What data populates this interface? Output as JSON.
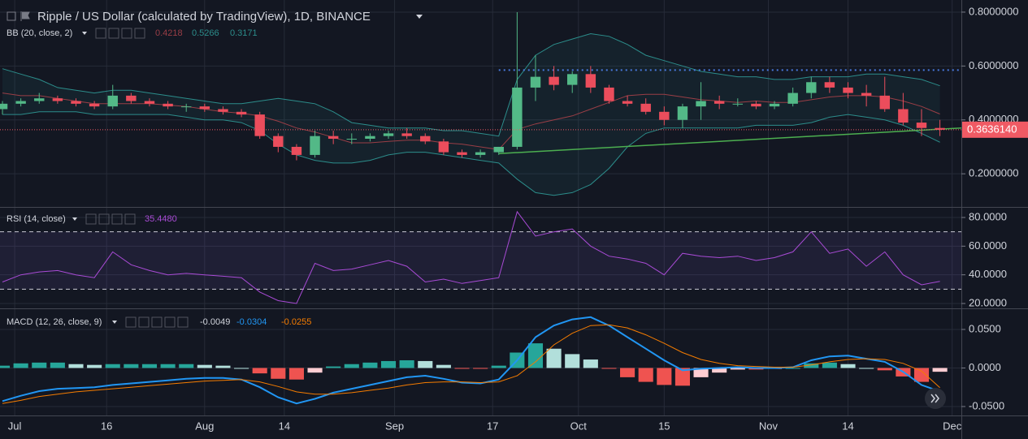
{
  "chart_data": {
    "type": "candlestick",
    "title": "Ripple / US Dollar (calculated by TradingView), 1D, BINANCE",
    "x": [
      -2,
      1,
      4,
      7,
      10,
      13,
      16,
      19,
      22,
      25,
      28,
      31,
      34,
      37,
      40,
      43,
      46,
      49,
      52,
      55,
      58,
      61,
      64,
      67,
      70,
      73,
      76,
      79,
      82,
      85,
      88,
      91,
      94,
      97,
      100,
      103,
      106,
      109,
      112,
      115,
      118,
      121,
      124,
      127,
      130,
      133,
      136,
      139,
      142,
      145,
      148,
      151
    ],
    "xlim": [
      -2.4,
      154.5
    ],
    "xticks": [
      {
        "value": 0,
        "label": "Jul"
      },
      {
        "value": 15,
        "label": "16"
      },
      {
        "value": 31,
        "label": "Aug"
      },
      {
        "value": 44,
        "label": "14"
      },
      {
        "value": 62,
        "label": "Sep"
      },
      {
        "value": 78,
        "label": "17"
      },
      {
        "value": 92,
        "label": "Oct"
      },
      {
        "value": 106,
        "label": "15"
      },
      {
        "value": 123,
        "label": "Nov"
      },
      {
        "value": 136,
        "label": "14"
      },
      {
        "value": 153,
        "label": "Dec"
      }
    ],
    "grid": true,
    "panes": [
      {
        "type": "candlestick",
        "ylim": [
          0.077,
          0.845
        ],
        "yticks": [
          {
            "value": 0.2,
            "label": "0.2000000"
          },
          {
            "value": 0.4,
            "label": "0.4000000"
          },
          {
            "value": 0.6,
            "label": "0.6000000"
          },
          {
            "value": 0.8,
            "label": "0.8000000"
          }
        ],
        "up_color": "#53b987",
        "down_color": "#eb4d5c",
        "open": [
          0.44,
          0.46,
          0.47,
          0.48,
          0.47,
          0.46,
          0.45,
          0.49,
          0.47,
          0.46,
          0.45,
          0.45,
          0.44,
          0.43,
          0.42,
          0.34,
          0.3,
          0.27,
          0.34,
          0.33,
          0.33,
          0.34,
          0.35,
          0.34,
          0.32,
          0.28,
          0.27,
          0.28,
          0.3,
          0.52,
          0.56,
          0.53,
          0.57,
          0.52,
          0.47,
          0.46,
          0.43,
          0.4,
          0.45,
          0.47,
          0.46,
          0.46,
          0.45,
          0.46,
          0.5,
          0.54,
          0.52,
          0.5,
          0.49,
          0.44,
          0.39,
          0.37
        ],
        "high": [
          0.47,
          0.48,
          0.5,
          0.49,
          0.48,
          0.47,
          0.53,
          0.5,
          0.48,
          0.47,
          0.46,
          0.46,
          0.45,
          0.44,
          0.43,
          0.35,
          0.31,
          0.36,
          0.36,
          0.35,
          0.35,
          0.36,
          0.37,
          0.35,
          0.33,
          0.29,
          0.29,
          0.3,
          0.8,
          0.64,
          0.6,
          0.58,
          0.6,
          0.53,
          0.49,
          0.48,
          0.45,
          0.46,
          0.54,
          0.49,
          0.48,
          0.47,
          0.47,
          0.52,
          0.56,
          0.56,
          0.54,
          0.53,
          0.56,
          0.5,
          0.44,
          0.4
        ],
        "low": [
          0.42,
          0.45,
          0.46,
          0.46,
          0.45,
          0.44,
          0.44,
          0.46,
          0.45,
          0.44,
          0.43,
          0.43,
          0.42,
          0.41,
          0.33,
          0.28,
          0.25,
          0.26,
          0.31,
          0.31,
          0.32,
          0.33,
          0.33,
          0.31,
          0.27,
          0.26,
          0.26,
          0.27,
          0.29,
          0.47,
          0.51,
          0.5,
          0.5,
          0.46,
          0.45,
          0.42,
          0.38,
          0.37,
          0.4,
          0.44,
          0.45,
          0.44,
          0.44,
          0.45,
          0.48,
          0.5,
          0.48,
          0.45,
          0.43,
          0.38,
          0.34,
          0.34
        ],
        "close": [
          0.46,
          0.47,
          0.48,
          0.47,
          0.46,
          0.45,
          0.49,
          0.47,
          0.46,
          0.45,
          0.45,
          0.44,
          0.43,
          0.42,
          0.34,
          0.3,
          0.27,
          0.34,
          0.33,
          0.33,
          0.34,
          0.35,
          0.34,
          0.32,
          0.28,
          0.27,
          0.28,
          0.3,
          0.52,
          0.56,
          0.53,
          0.57,
          0.52,
          0.47,
          0.46,
          0.43,
          0.4,
          0.45,
          0.47,
          0.46,
          0.46,
          0.45,
          0.46,
          0.5,
          0.54,
          0.52,
          0.5,
          0.49,
          0.44,
          0.39,
          0.37,
          0.363614
        ],
        "close_labels": [
          null,
          null,
          null,
          null,
          null,
          null,
          null,
          null,
          null,
          null,
          null,
          null,
          null,
          null,
          null,
          null,
          null,
          null,
          null,
          null,
          null,
          null,
          null,
          null,
          null,
          null,
          null,
          null,
          null,
          null,
          null,
          null,
          null,
          null,
          null,
          null,
          null,
          null,
          null,
          null,
          null,
          null,
          null,
          null,
          null,
          null,
          null,
          null,
          null,
          null,
          null,
          "0.3636140"
        ],
        "last_price_color": "#f05a64",
        "indicator": {
          "name": "BB (20, close, 2)",
          "fill": "#2a8c8a",
          "lines": [
            {
              "color": "#9a3e46",
              "values": [
                0.5,
                0.49,
                0.49,
                0.48,
                0.47,
                0.46,
                0.46,
                0.46,
                0.46,
                0.455,
                0.45,
                0.44,
                0.43,
                0.425,
                0.415,
                0.395,
                0.37,
                0.355,
                0.335,
                0.315,
                0.315,
                0.32,
                0.325,
                0.325,
                0.315,
                0.31,
                0.3,
                0.29,
                0.365,
                0.385,
                0.4,
                0.415,
                0.44,
                0.465,
                0.49,
                0.495,
                0.495,
                0.485,
                0.475,
                0.47,
                0.465,
                0.47,
                0.465,
                0.465,
                0.475,
                0.485,
                0.49,
                0.49,
                0.485,
                0.47,
                0.45,
                0.4218
              ]
            },
            {
              "color": "#2c8d8b",
              "values": [
                0.59,
                0.57,
                0.55,
                0.52,
                0.51,
                0.5,
                0.51,
                0.51,
                0.5,
                0.49,
                0.48,
                0.47,
                0.46,
                0.46,
                0.47,
                0.48,
                0.47,
                0.46,
                0.43,
                0.39,
                0.38,
                0.37,
                0.37,
                0.37,
                0.36,
                0.36,
                0.35,
                0.34,
                0.55,
                0.64,
                0.68,
                0.7,
                0.72,
                0.71,
                0.68,
                0.64,
                0.62,
                0.6,
                0.58,
                0.57,
                0.56,
                0.56,
                0.55,
                0.55,
                0.56,
                0.56,
                0.56,
                0.57,
                0.57,
                0.56,
                0.55,
                0.5266
              ]
            },
            {
              "color": "#2c8d8b",
              "values": [
                0.42,
                0.42,
                0.43,
                0.43,
                0.43,
                0.42,
                0.42,
                0.42,
                0.42,
                0.42,
                0.41,
                0.4,
                0.4,
                0.39,
                0.36,
                0.31,
                0.27,
                0.25,
                0.24,
                0.24,
                0.25,
                0.27,
                0.28,
                0.28,
                0.27,
                0.26,
                0.25,
                0.24,
                0.18,
                0.13,
                0.12,
                0.13,
                0.16,
                0.22,
                0.3,
                0.35,
                0.37,
                0.37,
                0.37,
                0.37,
                0.37,
                0.38,
                0.38,
                0.38,
                0.39,
                0.41,
                0.42,
                0.41,
                0.4,
                0.38,
                0.35,
                0.3171
              ]
            }
          ]
        },
        "drawings": [
          {
            "type": "hline",
            "value": 0.585,
            "from": 79,
            "color": "#4a7be0"
          },
          {
            "type": "trendline",
            "x": [
              79,
              154.5
            ],
            "y": [
              0.275,
              0.37
            ],
            "color": "#4caf50"
          }
        ]
      },
      {
        "type": "line",
        "name": "RSI (14, close)",
        "ylim": [
          16.6,
          86.8
        ],
        "yticks": [
          {
            "value": 20,
            "label": "20.0000"
          },
          {
            "value": 40,
            "label": "40.0000"
          },
          {
            "value": 60,
            "label": "60.0000"
          },
          {
            "value": 80,
            "label": "80.0000"
          }
        ],
        "bands": [
          30,
          70
        ],
        "band_color": "#7e57c2",
        "color": "#a94bd6",
        "values": [
          35,
          40,
          42,
          43,
          40,
          38,
          56,
          47,
          43,
          40,
          41,
          40,
          39,
          38,
          28,
          22,
          20,
          48,
          43,
          44,
          47,
          50,
          46,
          35,
          37,
          34,
          36,
          38,
          84,
          67,
          70,
          72,
          60,
          53,
          51,
          48,
          40,
          55,
          53,
          52,
          53,
          50,
          52,
          56,
          70,
          55,
          58,
          46,
          56,
          40,
          33,
          35.448
        ],
        "value_labels": [
          null,
          null,
          null,
          null,
          null,
          null,
          null,
          null,
          null,
          null,
          null,
          null,
          null,
          null,
          null,
          null,
          null,
          null,
          null,
          null,
          null,
          null,
          null,
          null,
          null,
          null,
          null,
          null,
          null,
          null,
          null,
          null,
          null,
          null,
          null,
          null,
          null,
          null,
          null,
          null,
          null,
          null,
          null,
          null,
          null,
          null,
          null,
          null,
          null,
          null,
          null,
          "35.4480"
        ]
      },
      {
        "type": "histogram",
        "name": "MACD (12, 26, close, 9)",
        "ylim": [
          -0.0616,
          0.0763
        ],
        "yticks": [
          {
            "value": -0.05,
            "label": "-0.0500"
          },
          {
            "value": 0,
            "label": "0.0000"
          },
          {
            "value": 0.05,
            "label": "0.0500"
          }
        ],
        "colors": [
          "#26a69a",
          "#b2dfdb",
          "#ef5350",
          "#ffcdd2"
        ],
        "label_color": "#d1d4dc",
        "values": [
          0.003,
          0.006,
          0.007,
          0.007,
          0.005,
          0.004,
          0.005,
          0.005,
          0.005,
          0.005,
          0.005,
          0.004,
          0.003,
          0,
          -0.007,
          -0.014,
          -0.015,
          -0.006,
          0.002,
          0.005,
          0.007,
          0.009,
          0.01,
          0.009,
          0.004,
          -0.001,
          -0.001,
          0.003,
          0.02,
          0.032,
          0.025,
          0.018,
          0.011,
          -0.001,
          -0.012,
          -0.018,
          -0.022,
          -0.023,
          -0.012,
          -0.006,
          -0.002,
          -0.002,
          -0.001,
          0,
          0.006,
          0.007,
          0.005,
          0,
          -0.003,
          -0.011,
          -0.018,
          -0.0049
        ],
        "lines": [
          {
            "color": "#2196f3",
            "values": [
              -0.043,
              -0.036,
              -0.03,
              -0.027,
              -0.026,
              -0.025,
              -0.022,
              -0.02,
              -0.018,
              -0.016,
              -0.014,
              -0.013,
              -0.013,
              -0.015,
              -0.025,
              -0.038,
              -0.046,
              -0.04,
              -0.032,
              -0.027,
              -0.022,
              -0.017,
              -0.012,
              -0.01,
              -0.014,
              -0.019,
              -0.02,
              -0.015,
              0.01,
              0.04,
              0.055,
              0.063,
              0.066,
              0.055,
              0.04,
              0.025,
              0.01,
              -0.003,
              -0.001,
              0,
              0.001,
              0,
              0,
              0.001,
              0.01,
              0.015,
              0.016,
              0.012,
              0.008,
              -0.005,
              -0.022,
              -0.0304
            ]
          },
          {
            "color": "#f57c00",
            "values": [
              -0.046,
              -0.042,
              -0.037,
              -0.034,
              -0.031,
              -0.029,
              -0.027,
              -0.025,
              -0.023,
              -0.021,
              -0.019,
              -0.017,
              -0.016,
              -0.015,
              -0.018,
              -0.024,
              -0.031,
              -0.034,
              -0.034,
              -0.032,
              -0.029,
              -0.026,
              -0.022,
              -0.019,
              -0.018,
              -0.018,
              -0.019,
              -0.018,
              -0.01,
              0.008,
              0.03,
              0.045,
              0.055,
              0.056,
              0.052,
              0.043,
              0.032,
              0.02,
              0.011,
              0.006,
              0.003,
              0.002,
              0.001,
              0.001,
              0.004,
              0.008,
              0.011,
              0.012,
              0.011,
              0.006,
              -0.004,
              -0.0255
            ]
          }
        ]
      }
    ]
  }
}
